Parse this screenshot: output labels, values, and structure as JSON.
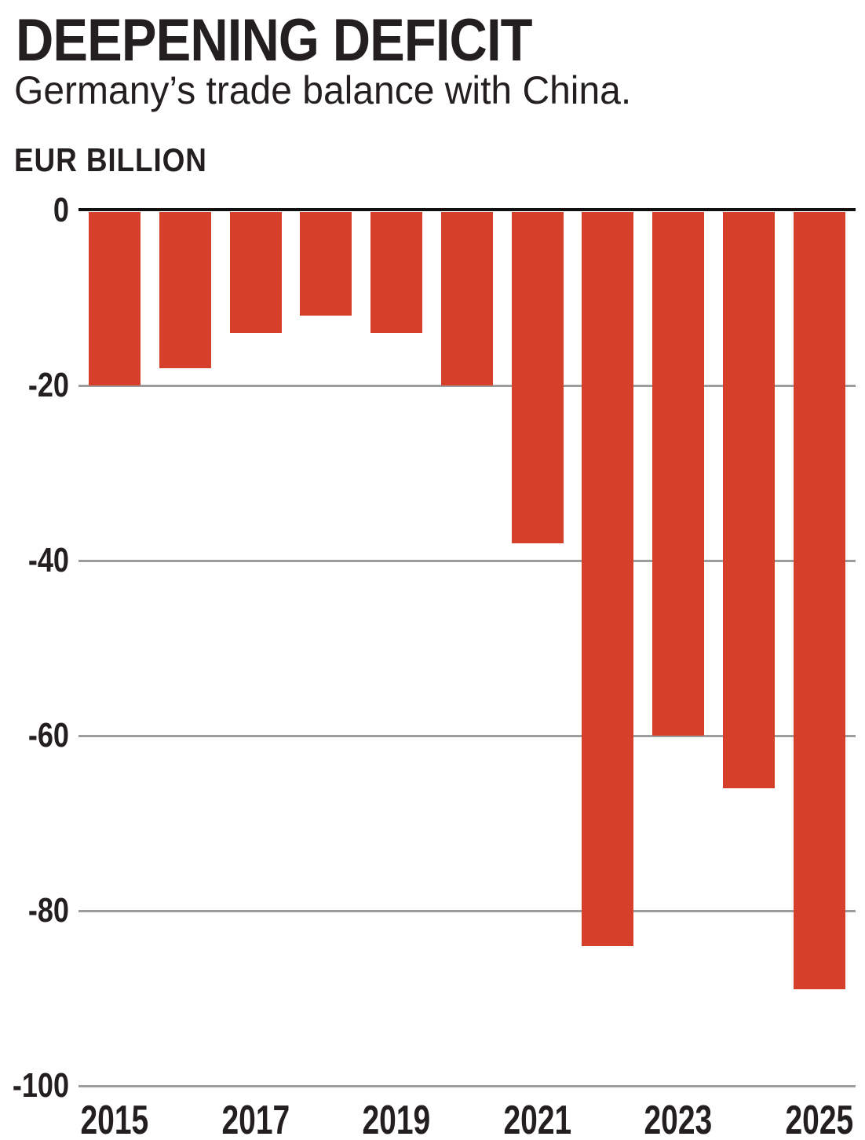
{
  "header": {
    "title": "DEEPENING DEFICIT",
    "subtitle": "Germany’s trade balance with China.",
    "unit_label": "EUR BILLION"
  },
  "chart_data": {
    "type": "bar",
    "title": "DEEPENING DEFICIT",
    "subtitle": "Germany’s trade balance with China.",
    "ylabel": "EUR BILLION",
    "xlabel": "",
    "categories": [
      "2015",
      "2016",
      "2017",
      "2018",
      "2019",
      "2020",
      "2021",
      "2022",
      "2023",
      "2024",
      "2025"
    ],
    "values": [
      -20,
      -18,
      -14,
      -12,
      -14,
      -20,
      -38,
      -84,
      -60,
      -66,
      -89
    ],
    "ylim": [
      -100,
      0
    ],
    "yticks": [
      0,
      -20,
      -40,
      -60,
      -80,
      -100
    ],
    "xticks_shown": [
      "2015",
      "2017",
      "2019",
      "2021",
      "2023",
      "2025"
    ],
    "grid": true,
    "legend_position": "none",
    "colors": {
      "bar": "#d6402a",
      "gridline": "#9d9d9d",
      "zero_axis": "#111111",
      "text": "#231f20"
    }
  }
}
